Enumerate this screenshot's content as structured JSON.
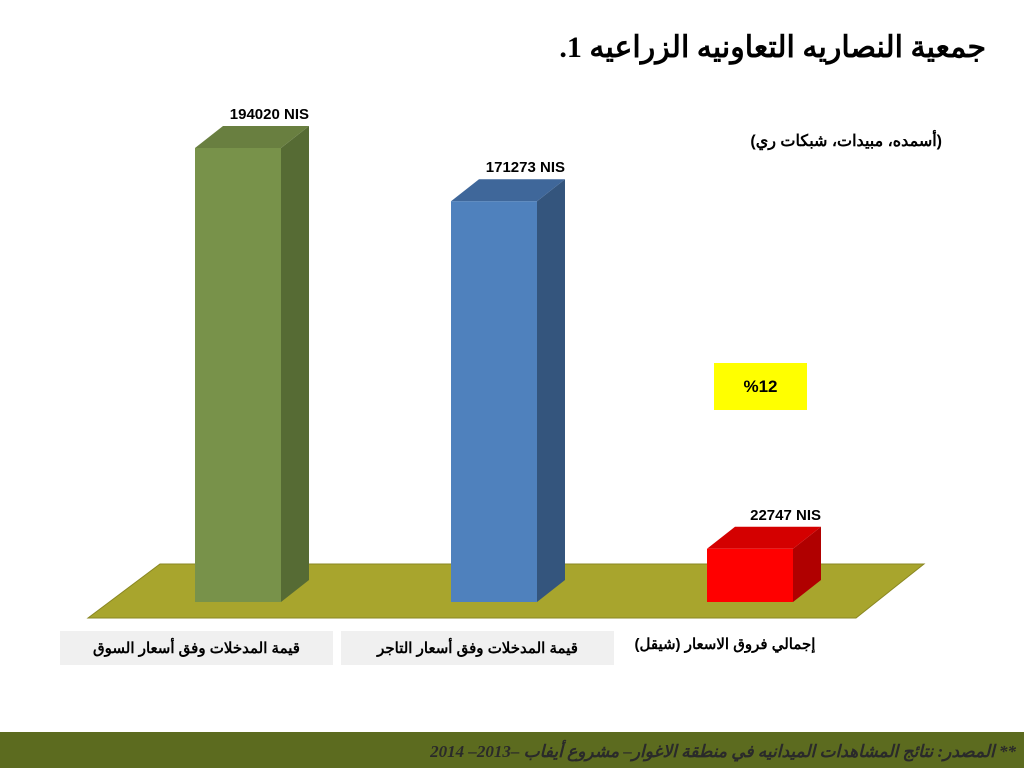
{
  "title": {
    "number": "1.",
    "text": "جمعية النصاريه التعاونيه الزراعيه"
  },
  "subtitle": "(أسمده، مبيدات، شبكات ري)",
  "percent_badge": "%12",
  "footer": {
    "text": "** المصدر: نتائج المشاهدات الميدانيه في منطقة الاغوار– مشروع أيفاب –2013– 2014"
  },
  "colors": {
    "floor": "#a8a52d",
    "footer_band": "#5c6b1f",
    "badge": "#ffff00"
  },
  "chart_data": {
    "type": "bar",
    "categories": [
      "قيمة المدخلات وفق أسعار السوق",
      "قيمة المدخلات وفق أسعار التاجر",
      "إجمالي فروق الاسعار (شيقل)"
    ],
    "values": [
      194020,
      171273,
      22747
    ],
    "data_labels": [
      "194020  NIS",
      "171273 NIS",
      "22747 NIS"
    ],
    "unit": "NIS",
    "bar_colors": [
      {
        "front": "#78924a",
        "side": "#566b34",
        "top": "#697f40"
      },
      {
        "front": "#4f81bd",
        "side": "#34557d",
        "top": "#3f679a"
      },
      {
        "front": "#ff0000",
        "side": "#b00000",
        "top": "#d40000"
      }
    ],
    "ylim": [
      0,
      194020
    ],
    "grid": false,
    "legend": "none",
    "style": "3d-column"
  }
}
